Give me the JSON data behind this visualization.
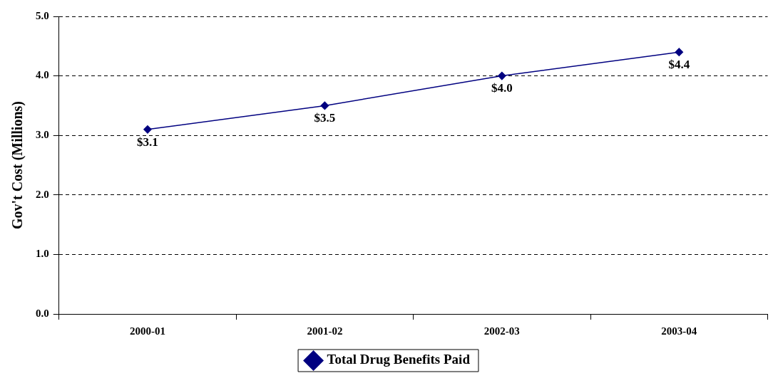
{
  "chart_data": {
    "type": "line",
    "ylabel": "Gov't Cost (Millions)",
    "categories": [
      "2000-01",
      "2001-02",
      "2002-03",
      "2003-04"
    ],
    "series": [
      {
        "name": "Total Drug Benefits Paid",
        "color": "#000080",
        "values": [
          3.1,
          3.5,
          4.0,
          4.4
        ],
        "value_labels": [
          "$3.1",
          "$3.5",
          "$4.0",
          "$4.4"
        ]
      }
    ],
    "ylim": [
      0,
      5
    ],
    "yticks": [
      {
        "value": 0,
        "label": "0.0"
      },
      {
        "value": 1,
        "label": "1.0"
      },
      {
        "value": 2,
        "label": "2.0"
      },
      {
        "value": 3,
        "label": "3.0"
      },
      {
        "value": 4,
        "label": "4.0"
      },
      {
        "value": 5,
        "label": "5.0"
      }
    ],
    "grid": "y",
    "line_style": "solid",
    "marker": "diamond",
    "legend": "bottom"
  }
}
